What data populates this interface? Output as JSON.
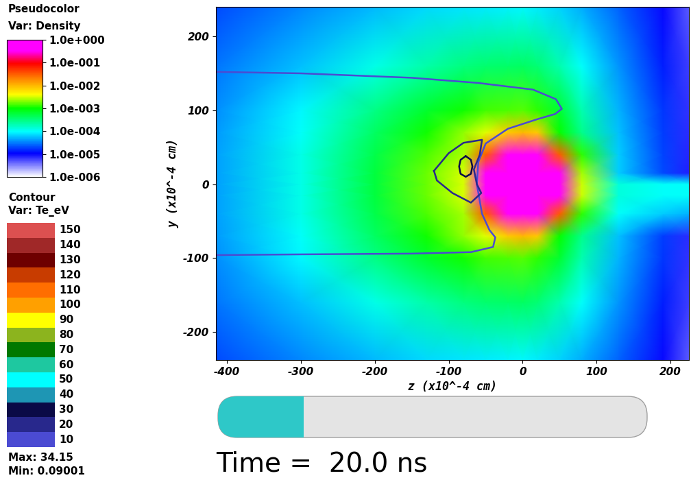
{
  "chart_data": {
    "type": "heatmap",
    "title": "Pseudocolor",
    "variable_label": "Var: Density",
    "xlabel": "z (x10^-4 cm)",
    "ylabel": "y (x10^-4 cm)",
    "xlim": [
      -415,
      225
    ],
    "ylim": [
      -238,
      240
    ],
    "xticks": [
      -400,
      -300,
      -200,
      -100,
      0,
      100,
      200
    ],
    "yticks": [
      -200,
      -100,
      0,
      100,
      200
    ],
    "x": [
      -415,
      -300,
      -200,
      -130,
      -80,
      -50,
      -20,
      0,
      20,
      50,
      80,
      130,
      190,
      225
    ],
    "y": [
      -238,
      -160,
      -100,
      -70,
      -40,
      -15,
      0,
      15,
      40,
      70,
      100,
      160,
      240
    ],
    "cells": [
      [
        2e-05,
        3.4e-05,
        5.2e-05,
        6.8e-05,
        7.9e-05,
        8.3e-05,
        8.7e-05,
        8.9e-05,
        8.3e-05,
        6.6e-05,
        4.8e-05,
        2.5e-05,
        1e-05,
        4.6e-06
      ],
      [
        2.9e-05,
        5.6e-05,
        0.00012,
        0.00022,
        0.00032,
        0.00036,
        0.00039,
        0.0004,
        0.00035,
        0.0002,
        0.0001,
        3.8e-05,
        1.4e-05,
        6e-06
      ],
      [
        3.6e-05,
        8.9e-05,
        0.00029,
        0.00068,
        0.0011,
        0.0014,
        0.0015,
        0.0016,
        0.0013,
        0.00062,
        0.0002,
        5.1e-05,
        1.7e-05,
        6.9e-06
      ],
      [
        4e-05,
        0.0001,
        0.00041,
        0.0011,
        0.0022,
        0.0034,
        0.0079,
        0.01,
        0.0079,
        0.001,
        0.00028,
        5.6e-05,
        1.8e-05,
        7.2e-06
      ],
      [
        4.2e-05,
        0.00012,
        0.00052,
        0.0015,
        0.0025,
        0.032,
        1.0,
        1.0,
        1.0,
        0.032,
        0.0013,
        0.0001,
        6.3e-05,
        5e-05
      ],
      [
        4.3e-05,
        0.00012,
        0.00056,
        0.0018,
        0.0032,
        1.0,
        1.0,
        1.0,
        1.0,
        1.0,
        0.003,
        0.00013,
        0.0001,
        0.0001
      ],
      [
        4.3e-05,
        0.00012,
        0.00056,
        0.0018,
        0.0032,
        1.0,
        1.0,
        1.0,
        1.0,
        1.0,
        0.003,
        0.00013,
        0.0001,
        0.0001
      ],
      [
        4.3e-05,
        0.00012,
        0.00056,
        0.0018,
        0.0032,
        1.0,
        1.0,
        1.0,
        1.0,
        1.0,
        0.0025,
        6.3e-05,
        2e-05,
        7.9e-06
      ],
      [
        4.2e-05,
        0.00012,
        0.00052,
        0.0015,
        0.0025,
        0.032,
        1.0,
        1.0,
        1.0,
        0.032,
        0.0013,
        6.3e-05,
        1.9e-05,
        7.4e-06
      ],
      [
        4e-05,
        0.0001,
        0.00041,
        0.0011,
        0.0022,
        0.0034,
        0.0079,
        0.01,
        0.0079,
        0.001,
        0.00028,
        5.6e-05,
        1.8e-05,
        7.2e-06
      ],
      [
        3.6e-05,
        8.9e-05,
        0.00029,
        0.00068,
        0.0011,
        0.0014,
        0.0015,
        0.0016,
        0.0013,
        0.00062,
        0.0002,
        5.1e-05,
        1.7e-05,
        6.9e-06
      ],
      [
        2.9e-05,
        5.6e-05,
        0.00012,
        0.00022,
        0.00032,
        0.00036,
        0.00039,
        0.0004,
        0.00035,
        0.0002,
        0.0001,
        3.8e-05,
        1.4e-05,
        6e-06
      ],
      [
        2e-05,
        3.4e-05,
        5.2e-05,
        6.8e-05,
        7.9e-05,
        8.3e-05,
        8.7e-05,
        8.9e-05,
        8.3e-05,
        6.6e-05,
        4.8e-05,
        2.5e-05,
        1e-05,
        4.6e-06
      ]
    ],
    "colorbar_range": [
      1e-06,
      1.0
    ],
    "colorbar_ticks": [
      {
        "value": 1.0,
        "label": "1.0e+000"
      },
      {
        "value": 0.1,
        "label": "1.0e-001"
      },
      {
        "value": 0.01,
        "label": "1.0e-002"
      },
      {
        "value": 0.001,
        "label": "1.0e-003"
      },
      {
        "value": 0.0001,
        "label": "1.0e-004"
      },
      {
        "value": 1e-05,
        "label": "1.0e-005"
      },
      {
        "value": 1e-06,
        "label": "1.0e-006"
      }
    ],
    "contour": {
      "title": "Contour",
      "variable_label": "Var: Te_eV",
      "levels": [
        10,
        20,
        30,
        40,
        50,
        60,
        70,
        80,
        90,
        100,
        110,
        120,
        130,
        140,
        150
      ],
      "colors": [
        "#4b4bd2",
        "#28288c",
        "#0a0a46",
        "#1e96b4",
        "#00ffff",
        "#1ec8a0",
        "#007800",
        "#8cb41e",
        "#ffff00",
        "#ffa000",
        "#ff6e00",
        "#c83c00",
        "#6e0000",
        "#a02828",
        "#dc5050"
      ],
      "lines": [
        {
          "level": 10,
          "points": [
            [
              -415,
              152
            ],
            [
              -300,
              150
            ],
            [
              -150,
              144
            ],
            [
              -60,
              137
            ],
            [
              14,
              128
            ],
            [
              45,
              115
            ],
            [
              53,
              102
            ],
            [
              44,
              95
            ],
            [
              20,
              88
            ],
            [
              -20,
              75
            ],
            [
              -50,
              55
            ],
            [
              -60,
              30
            ],
            [
              -62,
              0
            ],
            [
              -55,
              -40
            ],
            [
              -45,
              -62
            ],
            [
              -37,
              -72
            ],
            [
              -40,
              -85
            ],
            [
              -70,
              -92
            ],
            [
              -150,
              -94
            ],
            [
              -300,
              -95
            ],
            [
              -415,
              -96
            ]
          ]
        },
        {
          "level": 20,
          "points": [
            [
              -120,
              18
            ],
            [
              -100,
              42
            ],
            [
              -80,
              56
            ],
            [
              -55,
              60
            ],
            [
              -58,
              40
            ],
            [
              -66,
              20
            ],
            [
              -62,
              0
            ],
            [
              -56,
              -12
            ],
            [
              -70,
              -25
            ],
            [
              -95,
              -12
            ],
            [
              -116,
              5
            ],
            [
              -120,
              18
            ]
          ]
        },
        {
          "level": 30,
          "points": [
            [
              -77,
              38
            ],
            [
              -70,
              33
            ],
            [
              -68,
              24
            ],
            [
              -70,
              14
            ],
            [
              -77,
              10
            ],
            [
              -84,
              14
            ],
            [
              -86,
              24
            ],
            [
              -84,
              33
            ],
            [
              -77,
              38
            ]
          ]
        }
      ],
      "max_label": "Max: 34.15",
      "min_label": "Min: 0.09001"
    },
    "time_label": "Time =  20.0 ns",
    "progress": 0.2
  }
}
